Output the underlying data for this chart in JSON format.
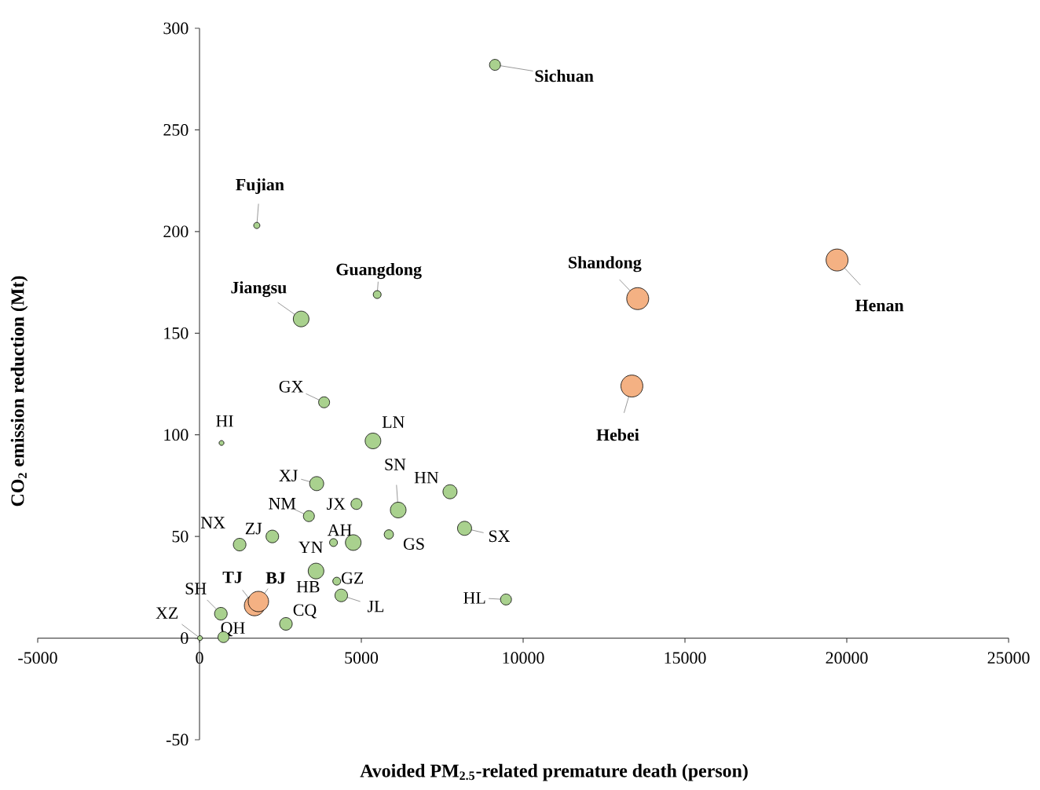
{
  "chart_data": {
    "type": "bubble",
    "xlabel": "Avoided PM$_{2.5}$-related premature death (person)",
    "ylabel": "CO$_{2}$ emission reduction (Mt)",
    "xlim": [
      -5000,
      25000
    ],
    "ylim": [
      -50,
      300
    ],
    "xticks": [
      -5000,
      0,
      5000,
      10000,
      15000,
      20000,
      25000
    ],
    "yticks": [
      -50,
      0,
      50,
      100,
      150,
      200,
      250,
      300
    ],
    "x": [
      9130,
      1770,
      5490,
      3140,
      13540,
      19700,
      13360,
      3850,
      680,
      5360,
      3620,
      4850,
      3380,
      6140,
      7740,
      1240,
      2250,
      4140,
      4750,
      5850,
      8190,
      3600,
      4240,
      4380,
      9470,
      1700,
      1820,
      660,
      15,
      740,
      2670
    ],
    "values": [
      282,
      203,
      169,
      157,
      167,
      186,
      124,
      116,
      96,
      97,
      76,
      66,
      60,
      63,
      72,
      46,
      50,
      47,
      47,
      51,
      54,
      33,
      28,
      21,
      19,
      16,
      18,
      12,
      0,
      0.5,
      7
    ],
    "sizes": [
      0.25,
      0.08,
      0.13,
      0.51,
      1,
      1,
      1,
      0.25,
      0.05,
      0.51,
      0.41,
      0.25,
      0.25,
      0.51,
      0.41,
      0.33,
      0.33,
      0.13,
      0.51,
      0.18,
      0.41,
      0.51,
      0.13,
      0.33,
      0.25,
      0.86,
      0.86,
      0.33,
      0.05,
      0.25,
      0.33
    ],
    "colors": [
      "#a9d18e",
      "#a9d18e",
      "#a9d18e",
      "#a9d18e",
      "#f4b183",
      "#f4b183",
      "#f4b183",
      "#a9d18e",
      "#a9d18e",
      "#a9d18e",
      "#a9d18e",
      "#a9d18e",
      "#a9d18e",
      "#a9d18e",
      "#a9d18e",
      "#a9d18e",
      "#a9d18e",
      "#a9d18e",
      "#a9d18e",
      "#a9d18e",
      "#a9d18e",
      "#a9d18e",
      "#a9d18e",
      "#a9d18e",
      "#a9d18e",
      "#f4b183",
      "#f4b183",
      "#a9d18e",
      "#a9d18e",
      "#a9d18e",
      "#a9d18e"
    ],
    "annotations": [
      {
        "text": "**Sichuan**",
        "x": 9130,
        "y": 282
      },
      {
        "text": "**Fujian**",
        "x": 1770,
        "y": 203
      },
      {
        "text": "**Guangdong**",
        "x": 5490,
        "y": 169
      },
      {
        "text": "**Jiangsu**",
        "x": 3140,
        "y": 157
      },
      {
        "text": "**Shandong**",
        "x": 13540,
        "y": 167
      },
      {
        "text": "**Henan**",
        "x": 19700,
        "y": 186
      },
      {
        "text": "**Hebei**",
        "x": 13360,
        "y": 124
      },
      {
        "text": "GX",
        "x": 3850,
        "y": 116
      },
      {
        "text": "HI",
        "x": 680,
        "y": 96
      },
      {
        "text": "LN",
        "x": 5360,
        "y": 97
      },
      {
        "text": "XJ",
        "x": 3620,
        "y": 76
      },
      {
        "text": "JX",
        "x": 4850,
        "y": 66
      },
      {
        "text": "NM",
        "x": 3380,
        "y": 60
      },
      {
        "text": "SN",
        "x": 6140,
        "y": 63
      },
      {
        "text": "HN",
        "x": 7740,
        "y": 72
      },
      {
        "text": "NX",
        "x": 1240,
        "y": 46
      },
      {
        "text": "ZJ",
        "x": 2250,
        "y": 50
      },
      {
        "text": "AH",
        "x": 4140,
        "y": 47
      },
      {
        "text": "YN",
        "x": 4750,
        "y": 47
      },
      {
        "text": "GS",
        "x": 5850,
        "y": 51
      },
      {
        "text": "SX",
        "x": 8190,
        "y": 54
      },
      {
        "text": "HB",
        "x": 3600,
        "y": 33
      },
      {
        "text": "GZ",
        "x": 4240,
        "y": 28
      },
      {
        "text": "JL",
        "x": 4380,
        "y": 21
      },
      {
        "text": "HL",
        "x": 9470,
        "y": 19
      },
      {
        "text": "**TJ**",
        "x": 1700,
        "y": 16
      },
      {
        "text": "**BJ**",
        "x": 1820,
        "y": 18
      },
      {
        "text": "SH",
        "x": 660,
        "y": 12
      },
      {
        "text": "XZ",
        "x": 15,
        "y": 0
      },
      {
        "text": "QH",
        "x": 740,
        "y": 0.5
      },
      {
        "text": "CQ",
        "x": 2670,
        "y": 7
      }
    ]
  }
}
